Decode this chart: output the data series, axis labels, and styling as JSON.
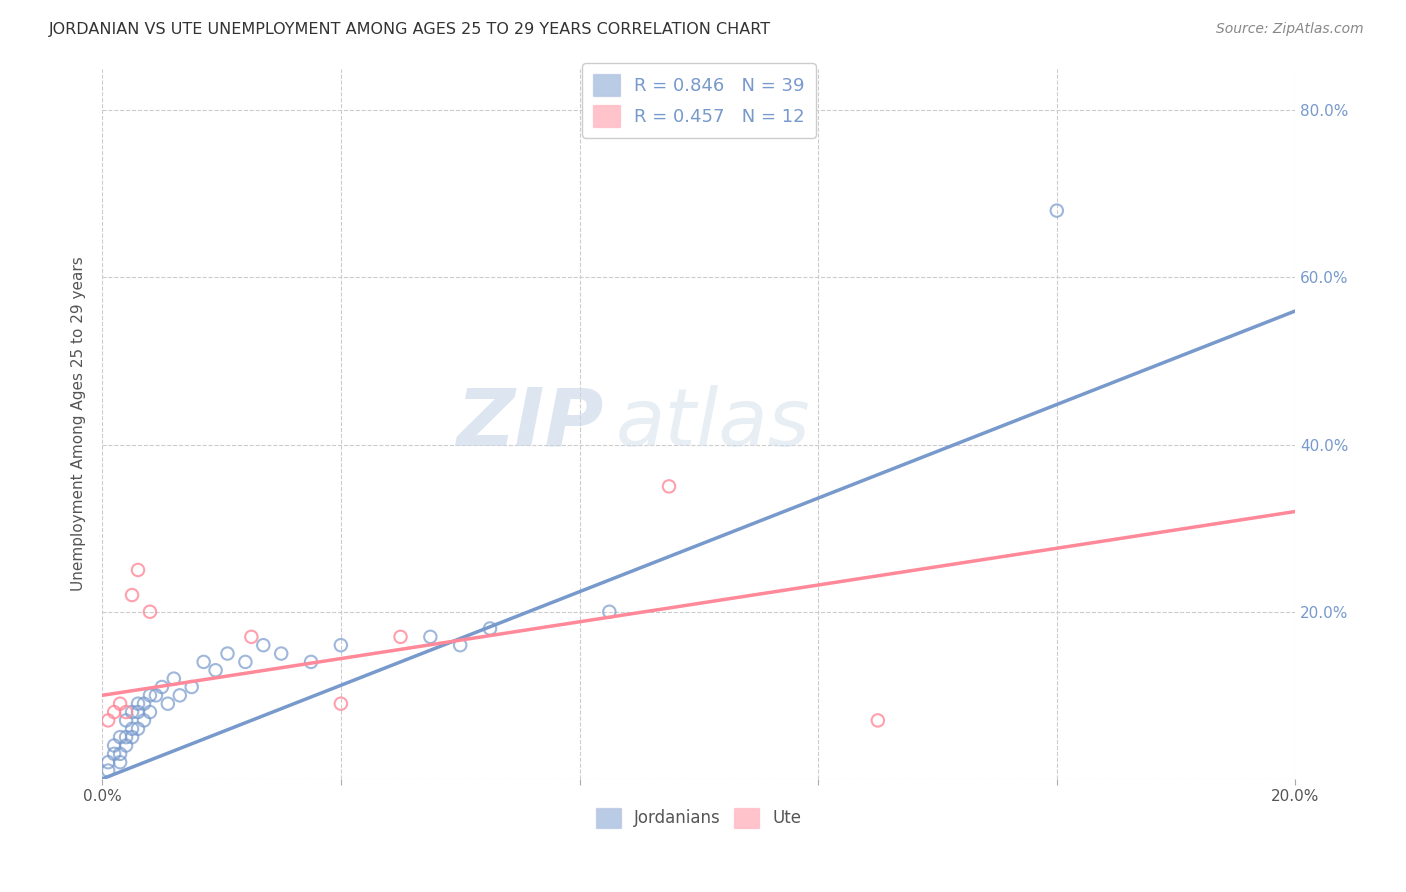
{
  "title": "JORDANIAN VS UTE UNEMPLOYMENT AMONG AGES 25 TO 29 YEARS CORRELATION CHART",
  "source": "Source: ZipAtlas.com",
  "ylabel": "Unemployment Among Ages 25 to 29 years",
  "xlim": [
    0.0,
    0.2
  ],
  "ylim": [
    0.0,
    0.85
  ],
  "xticks": [
    0.0,
    0.04,
    0.08,
    0.12,
    0.16,
    0.2
  ],
  "yticks": [
    0.0,
    0.2,
    0.4,
    0.6,
    0.8
  ],
  "ytick_labels_right": [
    "",
    "20.0%",
    "40.0%",
    "60.0%",
    "80.0%"
  ],
  "jordanian_color": "#7799CC",
  "ute_color": "#FF8899",
  "jordanian_R": 0.846,
  "jordanian_N": 39,
  "ute_R": 0.457,
  "ute_N": 12,
  "jordanian_x": [
    0.001,
    0.001,
    0.002,
    0.002,
    0.003,
    0.003,
    0.003,
    0.004,
    0.004,
    0.004,
    0.005,
    0.005,
    0.005,
    0.006,
    0.006,
    0.006,
    0.007,
    0.007,
    0.008,
    0.008,
    0.009,
    0.01,
    0.011,
    0.012,
    0.013,
    0.015,
    0.017,
    0.019,
    0.021,
    0.024,
    0.027,
    0.03,
    0.035,
    0.04,
    0.055,
    0.06,
    0.065,
    0.085,
    0.16
  ],
  "jordanian_y": [
    0.01,
    0.02,
    0.03,
    0.04,
    0.02,
    0.03,
    0.05,
    0.04,
    0.05,
    0.07,
    0.05,
    0.06,
    0.08,
    0.06,
    0.08,
    0.09,
    0.07,
    0.09,
    0.08,
    0.1,
    0.1,
    0.11,
    0.09,
    0.12,
    0.1,
    0.11,
    0.14,
    0.13,
    0.15,
    0.14,
    0.16,
    0.15,
    0.14,
    0.16,
    0.17,
    0.16,
    0.18,
    0.2,
    0.68
  ],
  "ute_x": [
    0.001,
    0.002,
    0.003,
    0.004,
    0.005,
    0.006,
    0.008,
    0.025,
    0.04,
    0.05,
    0.095,
    0.13
  ],
  "ute_y": [
    0.07,
    0.08,
    0.09,
    0.08,
    0.22,
    0.25,
    0.2,
    0.17,
    0.09,
    0.17,
    0.35,
    0.07
  ],
  "jordanian_line_x": [
    0.0,
    0.2
  ],
  "jordanian_line_y": [
    0.0,
    0.56
  ],
  "ute_line_x": [
    0.0,
    0.2
  ],
  "ute_line_y": [
    0.1,
    0.32
  ],
  "watermark_zip": "ZIP",
  "watermark_atlas": "atlas",
  "background_color": "#ffffff",
  "grid_color": "#cccccc",
  "marker_size": 80
}
